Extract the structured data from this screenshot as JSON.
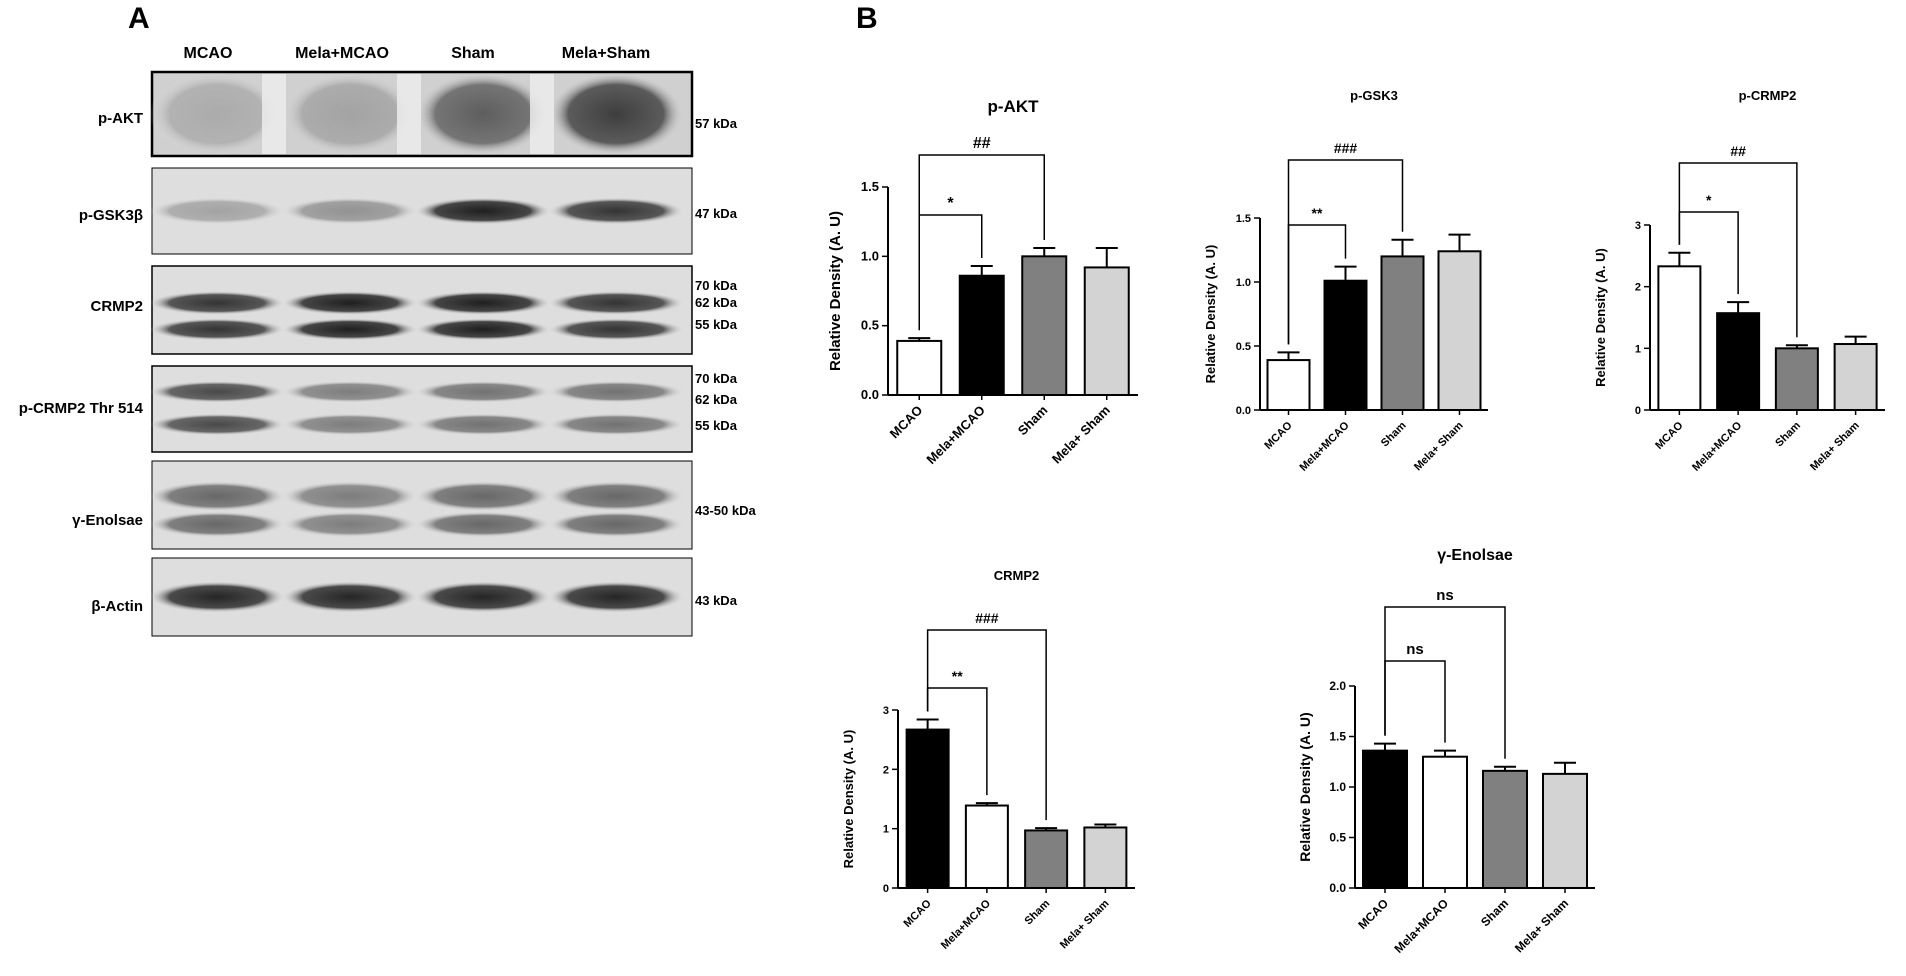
{
  "panel_a": {
    "letter": "A",
    "lanes": [
      "MCAO",
      "Mela+MCAO",
      "Sham",
      "Mela+Sham"
    ],
    "blots": [
      {
        "name": "p-AKT",
        "markers": [
          "57 kDa"
        ]
      },
      {
        "name": "p-GSK3β",
        "markers": [
          "47 kDa"
        ]
      },
      {
        "name": "CRMP2",
        "markers": [
          "70 kDa",
          "62 kDa",
          "55 kDa"
        ]
      },
      {
        "name": "p-CRMP2 Thr 514",
        "markers": [
          "70 kDa",
          "62 kDa",
          "55 kDa"
        ]
      },
      {
        "name": "γ-Enolsae",
        "markers": [
          "43-50 kDa"
        ]
      },
      {
        "name": "β-Actin",
        "markers": [
          "43 kDa"
        ]
      }
    ]
  },
  "panel_b": {
    "letter": "B"
  },
  "chart_data": [
    {
      "type": "bar",
      "title": "p-AKT",
      "ylabel": "Relative Density (A. U)",
      "categories": [
        "MCAO",
        "Mela+MCAO",
        "Sham",
        "Mela+ Sham"
      ],
      "values": [
        0.39,
        0.86,
        1.0,
        0.92
      ],
      "errors": [
        0.02,
        0.07,
        0.06,
        0.14
      ],
      "ylim": [
        0,
        1.5
      ],
      "yticks": [
        "0.0",
        "0.5",
        "1.0",
        "1.5"
      ],
      "fills": [
        "#ffffff",
        "#000000",
        "#808080",
        "#d3d3d3"
      ],
      "annotations": [
        {
          "from": 0,
          "to": 1,
          "label": "*"
        },
        {
          "from": 0,
          "to": 2,
          "label": "##"
        }
      ]
    },
    {
      "type": "bar",
      "title": "p-GSK3",
      "ylabel": "Relative Density (A. U)",
      "categories": [
        "MCAO",
        "Mela+MCAO",
        "Sham",
        "Mela+ Sham"
      ],
      "values": [
        0.39,
        1.01,
        1.2,
        1.24
      ],
      "errors": [
        0.06,
        0.11,
        0.13,
        0.13
      ],
      "ylim": [
        0,
        1.5
      ],
      "yticks": [
        "0.0",
        "0.5",
        "1.0",
        "1.5"
      ],
      "fills": [
        "#ffffff",
        "#000000",
        "#808080",
        "#d3d3d3"
      ],
      "annotations": [
        {
          "from": 0,
          "to": 1,
          "label": "**"
        },
        {
          "from": 0,
          "to": 2,
          "label": "###"
        }
      ]
    },
    {
      "type": "bar",
      "title": "p-CRMP2",
      "ylabel": "Relative Density (A. U)",
      "categories": [
        "MCAO",
        "Mela+MCAO",
        "Sham",
        "Mela+ Sham"
      ],
      "values": [
        2.33,
        1.57,
        1.0,
        1.07
      ],
      "errors": [
        0.22,
        0.18,
        0.05,
        0.12
      ],
      "ylim": [
        0,
        3
      ],
      "yticks": [
        "0",
        "1",
        "2",
        "3"
      ],
      "fills": [
        "#ffffff",
        "#000000",
        "#808080",
        "#d3d3d3"
      ],
      "annotations": [
        {
          "from": 0,
          "to": 1,
          "label": "*"
        },
        {
          "from": 0,
          "to": 2,
          "label": "##"
        }
      ]
    },
    {
      "type": "bar",
      "title": "CRMP2",
      "ylabel": "Relative Density (A. U)",
      "categories": [
        "MCAO",
        "Mela+MCAO",
        "Sham",
        "Mela+ Sham"
      ],
      "values": [
        2.67,
        1.39,
        0.97,
        1.02
      ],
      "errors": [
        0.17,
        0.04,
        0.04,
        0.05
      ],
      "ylim": [
        0,
        3
      ],
      "yticks": [
        "0",
        "1",
        "2",
        "3"
      ],
      "fills": [
        "#000000",
        "#ffffff",
        "#808080",
        "#d3d3d3"
      ],
      "annotations": [
        {
          "from": 0,
          "to": 1,
          "label": "**"
        },
        {
          "from": 0,
          "to": 2,
          "label": "###"
        }
      ]
    },
    {
      "type": "bar",
      "title": "γ-Enolsae",
      "ylabel": "Relative Density (A. U)",
      "categories": [
        "MCAO",
        "Mela+MCAO",
        "Sham",
        "Mela+ Sham"
      ],
      "values": [
        1.36,
        1.3,
        1.16,
        1.13
      ],
      "errors": [
        0.07,
        0.06,
        0.04,
        0.11
      ],
      "ylim": [
        0,
        2.0
      ],
      "yticks": [
        "0.0",
        "0.5",
        "1.0",
        "1.5",
        "2.0"
      ],
      "fills": [
        "#000000",
        "#ffffff",
        "#808080",
        "#d3d3d3"
      ],
      "annotations": [
        {
          "from": 0,
          "to": 1,
          "label": "ns"
        },
        {
          "from": 0,
          "to": 2,
          "label": "ns"
        }
      ]
    }
  ]
}
